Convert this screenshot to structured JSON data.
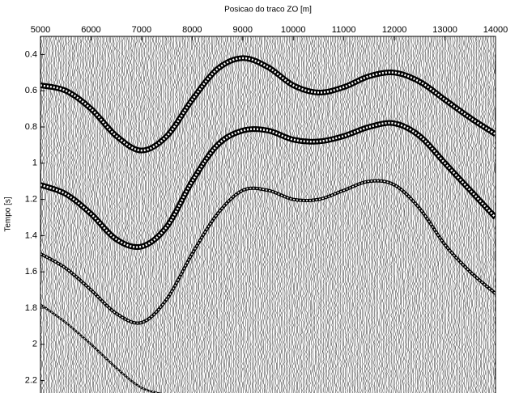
{
  "chart_data": {
    "type": "seismic",
    "title": "Posicao do traco ZO [m]",
    "ylabel": "Tempo [s]",
    "xlim": [
      5000,
      14000
    ],
    "xticks": [
      5000,
      6000,
      7000,
      8000,
      9000,
      10000,
      11000,
      12000,
      13000,
      14000
    ],
    "ylim": [
      0.3,
      2.3
    ],
    "yticks": [
      0.4,
      0.6,
      0.8,
      1,
      1.2,
      1.4,
      1.6,
      1.8,
      2,
      2.2
    ],
    "y_inverted": true,
    "x_axis_position": "top",
    "series": [
      {
        "color": "#000000",
        "x": [
          5000,
          5500,
          6000,
          6500,
          7000,
          7500,
          8000,
          8500,
          9000,
          9500,
          10000,
          10500,
          11000,
          11500,
          12000,
          12500,
          13000,
          13500,
          14000
        ],
        "values": [
          0.57,
          0.6,
          0.7,
          0.85,
          0.93,
          0.85,
          0.65,
          0.48,
          0.42,
          0.47,
          0.57,
          0.61,
          0.58,
          0.52,
          0.5,
          0.55,
          0.65,
          0.75,
          0.84
        ]
      },
      {
        "color": "#000000",
        "x": [
          5000,
          5500,
          6000,
          6500,
          7000,
          7500,
          8000,
          8500,
          9000,
          9500,
          10000,
          10500,
          11000,
          11500,
          12000,
          12500,
          13000,
          13500,
          14000
        ],
        "values": [
          1.12,
          1.17,
          1.28,
          1.42,
          1.46,
          1.35,
          1.1,
          0.9,
          0.82,
          0.82,
          0.87,
          0.88,
          0.85,
          0.8,
          0.78,
          0.85,
          1.0,
          1.15,
          1.3
        ]
      },
      {
        "color": "#000000",
        "x": [
          5000,
          5500,
          6000,
          6500,
          7000,
          7500,
          8000,
          8500,
          9000,
          9500,
          10000,
          10500,
          11000,
          11500,
          12000,
          12500,
          13000,
          13500,
          14000
        ],
        "values": [
          1.5,
          1.58,
          1.7,
          1.83,
          1.88,
          1.75,
          1.5,
          1.28,
          1.15,
          1.15,
          1.2,
          1.2,
          1.15,
          1.1,
          1.12,
          1.25,
          1.45,
          1.6,
          1.72
        ]
      },
      {
        "color": "#000000",
        "x": [
          5000,
          5500,
          6000,
          6500,
          7000,
          7500
        ],
        "values": [
          1.78,
          1.88,
          2.0,
          2.13,
          2.24,
          2.28
        ]
      }
    ]
  }
}
